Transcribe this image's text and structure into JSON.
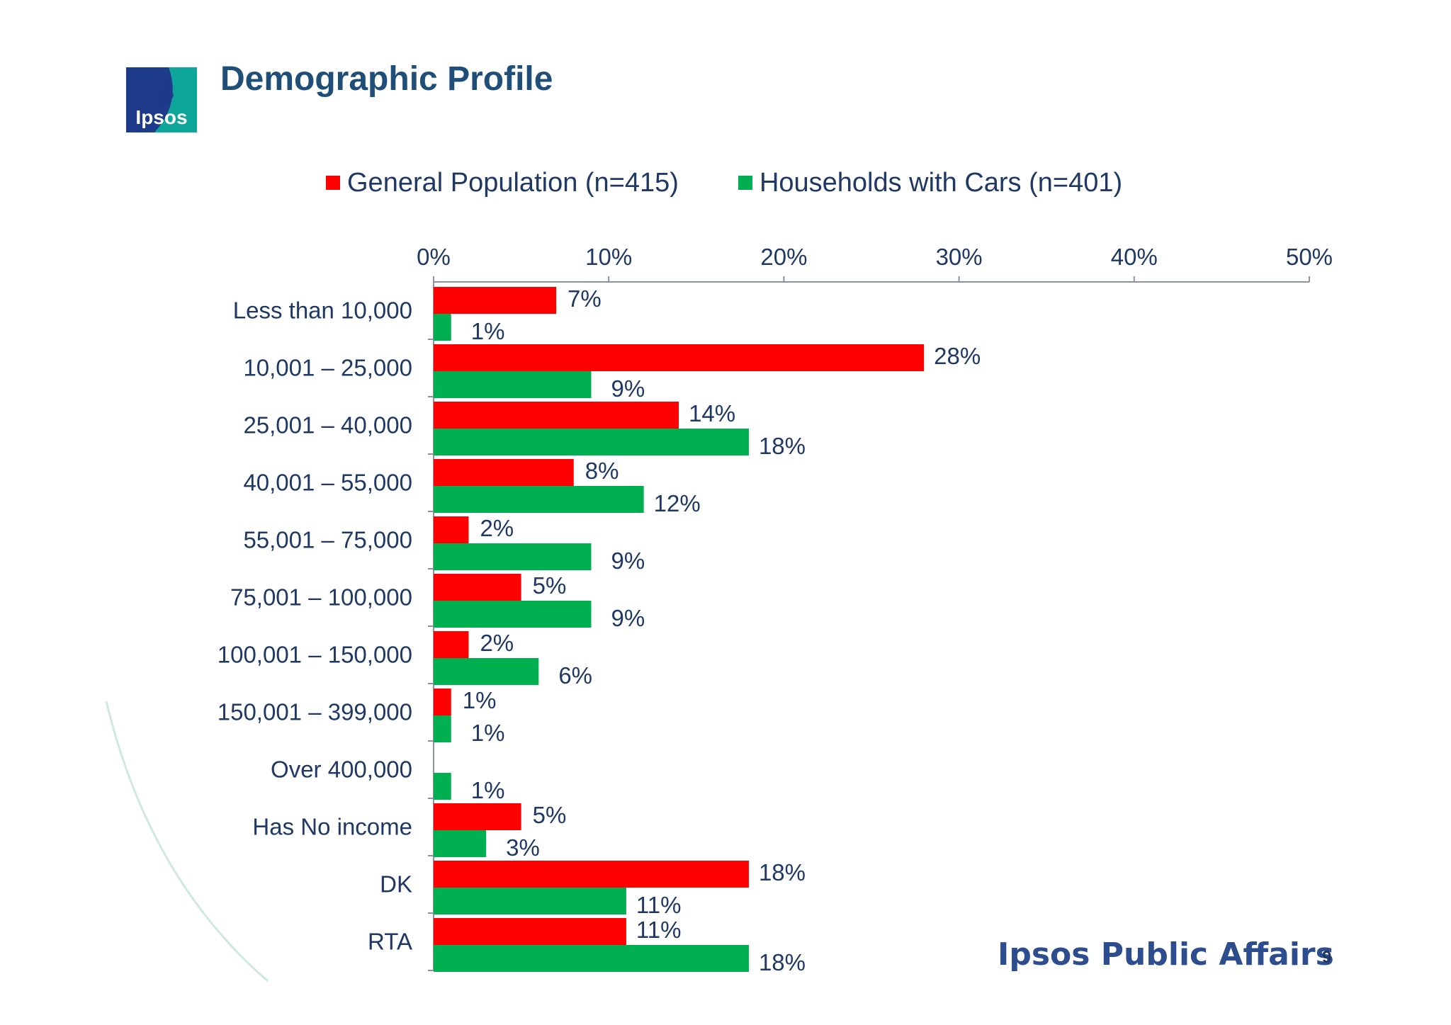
{
  "header": {
    "title": "Demographic Profile",
    "logo_text": "Ipsos"
  },
  "footer": {
    "brand": "Ipsos Public Affairs",
    "page_number": "9"
  },
  "colors": {
    "general_population": "#ff0000",
    "households_with_cars": "#00b050",
    "text": "#1f3864",
    "axis": "#8a93a6"
  },
  "chart_data": {
    "type": "bar",
    "orientation": "horizontal",
    "title": "",
    "xlabel": "",
    "ylabel": "",
    "xlim": [
      0,
      50
    ],
    "ticks": [
      "0%",
      "10%",
      "20%",
      "30%",
      "40%",
      "50%"
    ],
    "grid": false,
    "legend_position": "top",
    "categories": [
      "Less than 10,000",
      "10,001 – 25,000",
      "25,001 – 40,000",
      "40,001 – 55,000",
      "55,001 – 75,000",
      "75,001 – 100,000",
      "100,001 – 150,000",
      "150,001 – 399,000",
      "Over 400,000",
      "Has No income",
      "DK",
      "RTA"
    ],
    "series": [
      {
        "name": "General Population (n=415)",
        "values": [
          7,
          28,
          14,
          8,
          2,
          5,
          2,
          1,
          null,
          5,
          18,
          11
        ],
        "labels": [
          "7%",
          "28%",
          "14%",
          "8%",
          "2%",
          "5%",
          "2%",
          "1%",
          "",
          "5%",
          "18%",
          "11%"
        ]
      },
      {
        "name": "Households with Cars (n=401)",
        "values": [
          1,
          9,
          18,
          12,
          9,
          9,
          6,
          1,
          1,
          3,
          11,
          18
        ],
        "labels": [
          "1%",
          "9%",
          "18%",
          "12%",
          "9%",
          "9%",
          "6%",
          "1%",
          "1%",
          "3%",
          "11%",
          "18%"
        ]
      }
    ]
  }
}
